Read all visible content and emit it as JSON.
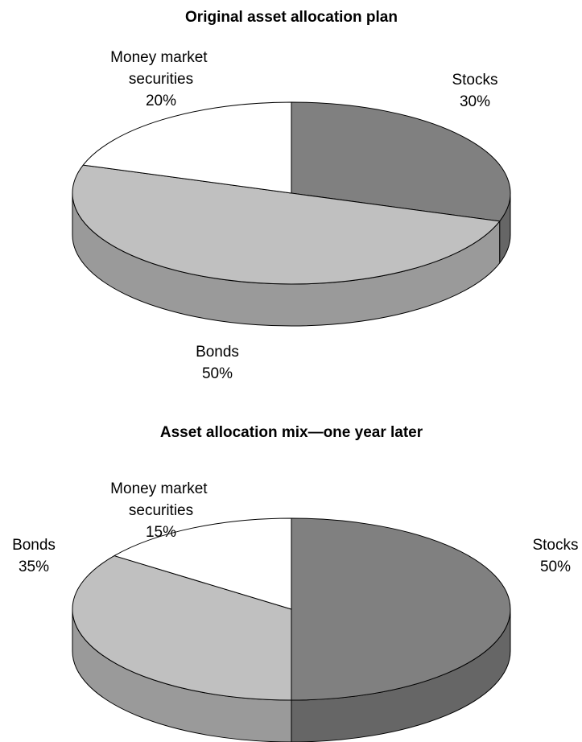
{
  "chart_data": [
    {
      "type": "pie3d",
      "title": "Original asset allocation plan",
      "categories": [
        "Stocks",
        "Bonds",
        "Money market securities"
      ],
      "values": [
        30,
        50,
        20
      ],
      "value_labels": [
        "30%",
        "50%",
        "20%"
      ],
      "colors": [
        "#808080",
        "#c0c0c0",
        "#ffffff"
      ]
    },
    {
      "type": "pie3d",
      "title": "Asset allocation mix—one year later",
      "categories": [
        "Stocks",
        "Bonds",
        "Money market securities"
      ],
      "values": [
        50,
        35,
        15
      ],
      "value_labels": [
        "50%",
        "35%",
        "15%"
      ],
      "colors": [
        "#808080",
        "#c0c0c0",
        "#ffffff"
      ]
    }
  ]
}
